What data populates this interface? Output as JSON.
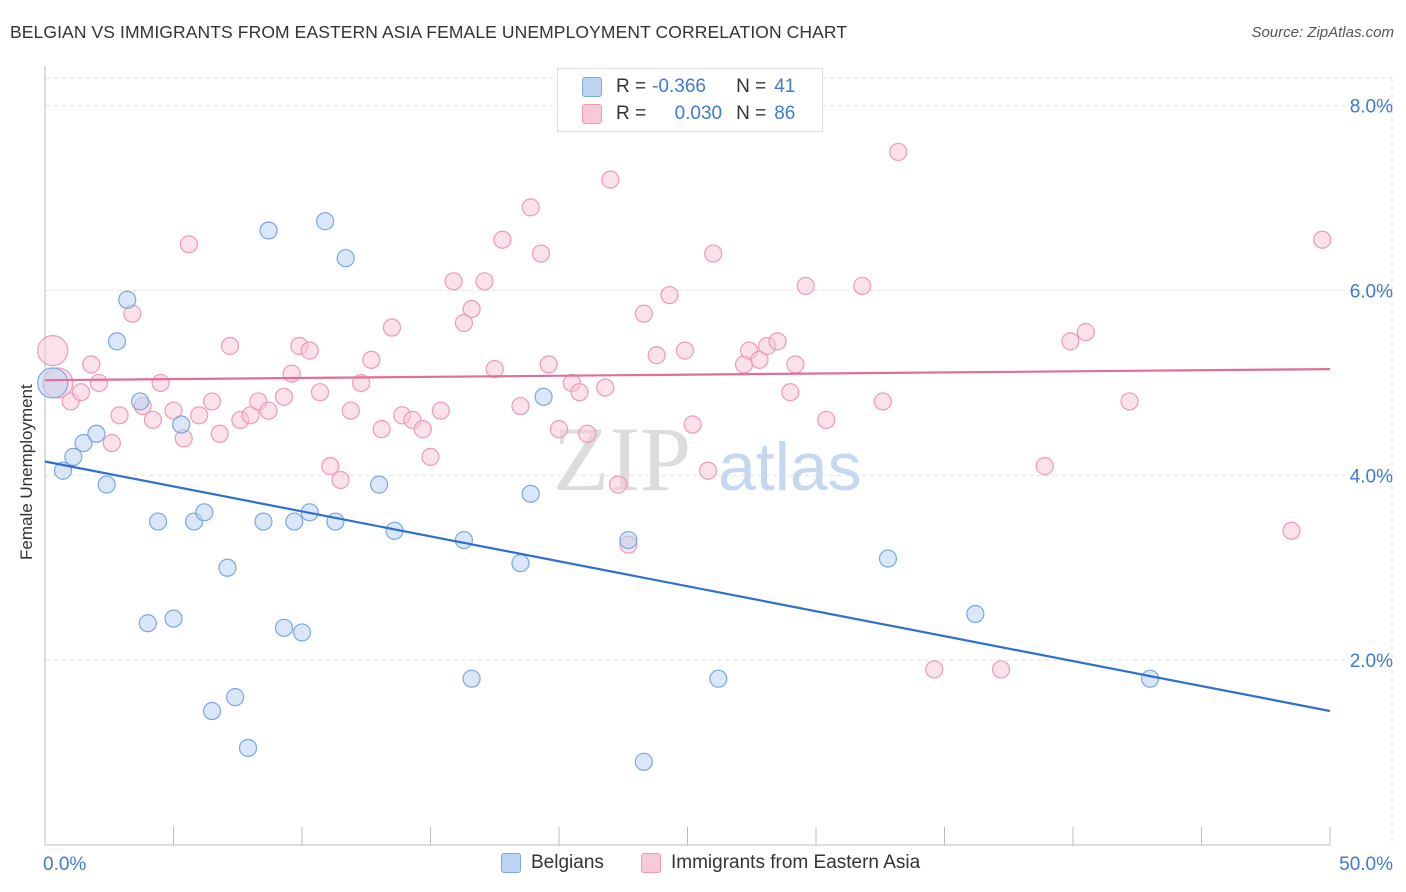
{
  "title": "BELGIAN VS IMMIGRANTS FROM EASTERN ASIA FEMALE UNEMPLOYMENT CORRELATION CHART",
  "source": "Source: ZipAtlas.com",
  "watermark": {
    "zip": "ZIP",
    "atlas": "atlas"
  },
  "legend": {
    "belgians": {
      "r_label": "R =",
      "r_value": "-0.366",
      "n_label": "N =",
      "n_value": "41"
    },
    "immigrants": {
      "r_label": "R =",
      "r_value": "0.030",
      "n_label": "N =",
      "n_value": "86"
    }
  },
  "colors": {
    "belgians_fill": "#bcd4f2",
    "belgians_stroke": "#7aa8e0",
    "belgians_line": "#2e6fd0",
    "immigrants_fill": "#f8c9d7",
    "immigrants_stroke": "#ee9ab3",
    "immigrants_line": "#e06f93",
    "tick_text": "#3d7bd0"
  },
  "chart_data": {
    "type": "scatter",
    "title": "BELGIAN VS IMMIGRANTS FROM EASTERN ASIA FEMALE UNEMPLOYMENT CORRELATION CHART",
    "xlabel": "",
    "ylabel": "Female Unemployment",
    "xlim": [
      0,
      50
    ],
    "ylim": [
      0,
      8.3
    ],
    "x_tick_labels": [
      "0.0%",
      "50.0%"
    ],
    "y_ticks": [
      2,
      4,
      6,
      8
    ],
    "y_tick_labels": [
      "2.0%",
      "4.0%",
      "6.0%",
      "8.0%"
    ],
    "grid": true,
    "legend_position": "bottom",
    "series": [
      {
        "name": "Belgians",
        "trend": {
          "x": [
            0,
            50
          ],
          "y": [
            4.15,
            1.45
          ]
        },
        "points": [
          {
            "x": 0.3,
            "y": 5.0,
            "big": true
          },
          {
            "x": 0.7,
            "y": 4.05
          },
          {
            "x": 1.1,
            "y": 4.2
          },
          {
            "x": 1.5,
            "y": 4.35
          },
          {
            "x": 2.0,
            "y": 4.45
          },
          {
            "x": 2.4,
            "y": 3.9
          },
          {
            "x": 2.8,
            "y": 5.45
          },
          {
            "x": 3.2,
            "y": 5.9
          },
          {
            "x": 3.7,
            "y": 4.8
          },
          {
            "x": 4.0,
            "y": 2.4
          },
          {
            "x": 4.4,
            "y": 3.5
          },
          {
            "x": 5.0,
            "y": 2.45
          },
          {
            "x": 5.3,
            "y": 4.55
          },
          {
            "x": 5.8,
            "y": 3.5
          },
          {
            "x": 6.2,
            "y": 3.6
          },
          {
            "x": 6.5,
            "y": 1.45
          },
          {
            "x": 7.1,
            "y": 3.0
          },
          {
            "x": 7.4,
            "y": 1.6
          },
          {
            "x": 7.9,
            "y": 1.05
          },
          {
            "x": 8.5,
            "y": 3.5
          },
          {
            "x": 8.7,
            "y": 6.65
          },
          {
            "x": 9.3,
            "y": 2.35
          },
          {
            "x": 9.7,
            "y": 3.5
          },
          {
            "x": 10.0,
            "y": 2.3
          },
          {
            "x": 10.3,
            "y": 3.6
          },
          {
            "x": 10.9,
            "y": 6.75
          },
          {
            "x": 11.3,
            "y": 3.5
          },
          {
            "x": 11.7,
            "y": 6.35
          },
          {
            "x": 13.0,
            "y": 3.9
          },
          {
            "x": 13.6,
            "y": 3.4
          },
          {
            "x": 16.3,
            "y": 3.3
          },
          {
            "x": 16.6,
            "y": 1.8
          },
          {
            "x": 18.5,
            "y": 3.05
          },
          {
            "x": 18.9,
            "y": 3.8
          },
          {
            "x": 19.4,
            "y": 4.85
          },
          {
            "x": 22.7,
            "y": 3.3
          },
          {
            "x": 23.3,
            "y": 0.9
          },
          {
            "x": 26.2,
            "y": 1.8
          },
          {
            "x": 32.8,
            "y": 3.1
          },
          {
            "x": 36.2,
            "y": 2.5
          },
          {
            "x": 43.0,
            "y": 1.8
          }
        ]
      },
      {
        "name": "Immigrants from Eastern Asia",
        "trend": {
          "x": [
            0,
            50
          ],
          "y": [
            5.03,
            5.15
          ]
        },
        "points": [
          {
            "x": 0.3,
            "y": 5.35,
            "big": true
          },
          {
            "x": 0.5,
            "y": 5.0,
            "big": true
          },
          {
            "x": 1.0,
            "y": 4.8
          },
          {
            "x": 1.4,
            "y": 4.9
          },
          {
            "x": 1.8,
            "y": 5.2
          },
          {
            "x": 2.1,
            "y": 5.0
          },
          {
            "x": 2.6,
            "y": 4.35
          },
          {
            "x": 2.9,
            "y": 4.65
          },
          {
            "x": 3.4,
            "y": 5.75
          },
          {
            "x": 3.8,
            "y": 4.75
          },
          {
            "x": 4.2,
            "y": 4.6
          },
          {
            "x": 4.5,
            "y": 5.0
          },
          {
            "x": 5.0,
            "y": 4.7
          },
          {
            "x": 5.4,
            "y": 4.4
          },
          {
            "x": 5.6,
            "y": 6.5
          },
          {
            "x": 6.0,
            "y": 4.65
          },
          {
            "x": 6.5,
            "y": 4.8
          },
          {
            "x": 6.8,
            "y": 4.45
          },
          {
            "x": 7.2,
            "y": 5.4
          },
          {
            "x": 7.6,
            "y": 4.6
          },
          {
            "x": 8.0,
            "y": 4.65
          },
          {
            "x": 8.3,
            "y": 4.8
          },
          {
            "x": 8.7,
            "y": 4.7
          },
          {
            "x": 9.3,
            "y": 4.85
          },
          {
            "x": 9.6,
            "y": 5.1
          },
          {
            "x": 9.9,
            "y": 5.4
          },
          {
            "x": 10.3,
            "y": 5.35
          },
          {
            "x": 10.7,
            "y": 4.9
          },
          {
            "x": 11.1,
            "y": 4.1
          },
          {
            "x": 11.5,
            "y": 3.95
          },
          {
            "x": 11.9,
            "y": 4.7
          },
          {
            "x": 12.3,
            "y": 5.0
          },
          {
            "x": 12.7,
            "y": 5.25
          },
          {
            "x": 13.1,
            "y": 4.5
          },
          {
            "x": 13.5,
            "y": 5.6
          },
          {
            "x": 13.9,
            "y": 4.65
          },
          {
            "x": 14.3,
            "y": 4.6
          },
          {
            "x": 14.7,
            "y": 4.5
          },
          {
            "x": 15.0,
            "y": 4.2
          },
          {
            "x": 15.4,
            "y": 4.7
          },
          {
            "x": 15.9,
            "y": 6.1
          },
          {
            "x": 16.3,
            "y": 5.65
          },
          {
            "x": 16.6,
            "y": 5.8
          },
          {
            "x": 17.1,
            "y": 6.1
          },
          {
            "x": 17.5,
            "y": 5.15
          },
          {
            "x": 17.8,
            "y": 6.55
          },
          {
            "x": 18.5,
            "y": 4.75
          },
          {
            "x": 18.9,
            "y": 6.9
          },
          {
            "x": 19.3,
            "y": 6.4
          },
          {
            "x": 19.6,
            "y": 5.2
          },
          {
            "x": 20.0,
            "y": 4.5
          },
          {
            "x": 20.5,
            "y": 5.0
          },
          {
            "x": 20.8,
            "y": 4.9
          },
          {
            "x": 21.1,
            "y": 4.45
          },
          {
            "x": 21.8,
            "y": 4.95
          },
          {
            "x": 22.0,
            "y": 7.2
          },
          {
            "x": 22.3,
            "y": 3.9
          },
          {
            "x": 22.7,
            "y": 3.25
          },
          {
            "x": 23.3,
            "y": 5.75
          },
          {
            "x": 23.8,
            "y": 5.3
          },
          {
            "x": 24.3,
            "y": 5.95
          },
          {
            "x": 24.9,
            "y": 5.35
          },
          {
            "x": 25.2,
            "y": 4.55
          },
          {
            "x": 25.8,
            "y": 4.05
          },
          {
            "x": 26.0,
            "y": 6.4
          },
          {
            "x": 27.2,
            "y": 5.2
          },
          {
            "x": 27.4,
            "y": 5.35
          },
          {
            "x": 27.8,
            "y": 5.25
          },
          {
            "x": 28.1,
            "y": 5.4
          },
          {
            "x": 28.5,
            "y": 5.45
          },
          {
            "x": 29.0,
            "y": 4.9
          },
          {
            "x": 29.2,
            "y": 5.2
          },
          {
            "x": 29.6,
            "y": 6.05
          },
          {
            "x": 30.4,
            "y": 4.6
          },
          {
            "x": 31.8,
            "y": 6.05
          },
          {
            "x": 32.6,
            "y": 4.8
          },
          {
            "x": 33.2,
            "y": 7.5
          },
          {
            "x": 34.6,
            "y": 1.9
          },
          {
            "x": 37.2,
            "y": 1.9
          },
          {
            "x": 38.9,
            "y": 4.1
          },
          {
            "x": 39.9,
            "y": 5.45
          },
          {
            "x": 40.5,
            "y": 5.55
          },
          {
            "x": 42.2,
            "y": 4.8
          },
          {
            "x": 48.5,
            "y": 3.4
          },
          {
            "x": 49.7,
            "y": 6.55
          },
          {
            "x": 26.5,
            "y": 8.05
          }
        ]
      }
    ]
  },
  "bottom_legend": {
    "belgians": "Belgians",
    "immigrants": "Immigrants from Eastern Asia"
  }
}
